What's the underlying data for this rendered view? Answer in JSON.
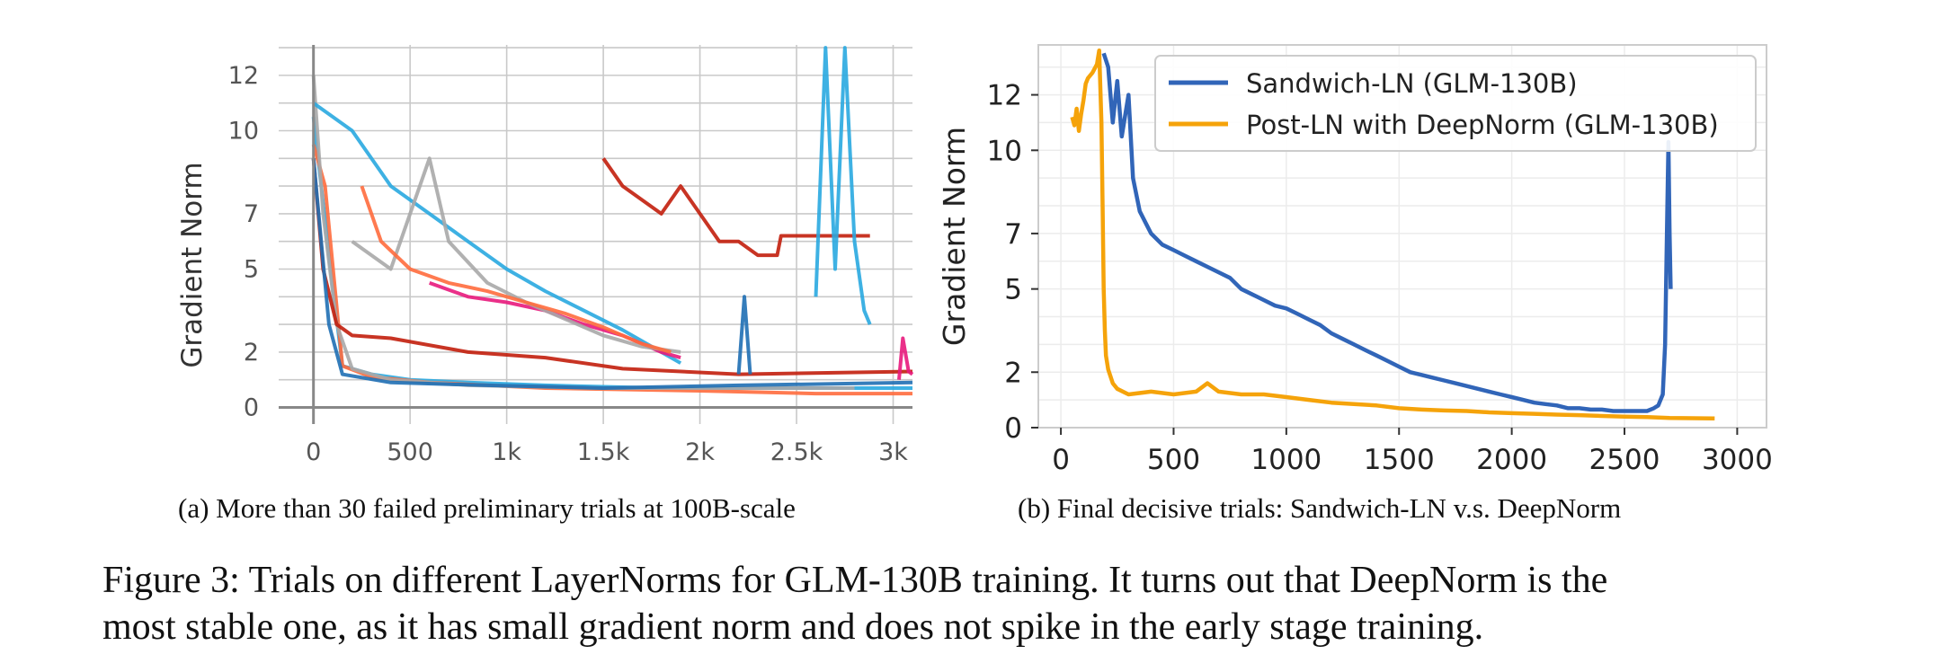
{
  "chart_data": [
    {
      "type": "line",
      "panel": "a",
      "ylabel": "Gradient Norm",
      "xlabel": "",
      "xlim": [
        -180,
        3100
      ],
      "ylim": [
        -0.6,
        13.1
      ],
      "x_ticks": [
        0,
        500,
        1000,
        1500,
        2000,
        2500,
        3000
      ],
      "x_tick_labels": [
        "0",
        "500",
        "1k",
        "1.5k",
        "2k",
        "2.5k",
        "3k"
      ],
      "y_ticks": [
        0,
        2,
        5,
        7,
        10,
        12
      ],
      "y_tick_labels": [
        "0",
        "2",
        "5",
        "7",
        "10",
        "12"
      ],
      "y_minor_gridlines": [
        1,
        3,
        4,
        6,
        8,
        9,
        11,
        13
      ],
      "grid": true,
      "legend": "none",
      "series": [
        {
          "color": "#29a8e0",
          "points": [
            [
              0,
              10.5
            ],
            [
              80,
              5.5
            ],
            [
              150,
              1.5
            ],
            [
              300,
              1.2
            ],
            [
              500,
              1.0
            ],
            [
              800,
              0.9
            ],
            [
              1200,
              0.8
            ],
            [
              1800,
              0.7
            ],
            [
              2400,
              0.7
            ],
            [
              3100,
              0.7
            ]
          ]
        },
        {
          "color": "#ff6b3d",
          "points": [
            [
              0,
              9.5
            ],
            [
              60,
              8
            ],
            [
              150,
              1.5
            ],
            [
              300,
              1.1
            ],
            [
              600,
              0.9
            ],
            [
              1200,
              0.7
            ],
            [
              2000,
              0.6
            ],
            [
              2600,
              0.5
            ],
            [
              3100,
              0.5
            ]
          ]
        },
        {
          "color": "#a8a8a8",
          "points": [
            [
              0,
              12
            ],
            [
              50,
              7
            ],
            [
              120,
              3
            ],
            [
              200,
              1.4
            ],
            [
              400,
              1.0
            ],
            [
              800,
              0.8
            ],
            [
              1500,
              0.7
            ],
            [
              2200,
              0.7
            ],
            [
              2800,
              0.7
            ]
          ]
        },
        {
          "color": "#c21e0c",
          "points": [
            [
              0,
              9
            ],
            [
              50,
              5
            ],
            [
              120,
              3
            ],
            [
              200,
              2.6
            ],
            [
              400,
              2.5
            ],
            [
              800,
              2.0
            ],
            [
              1200,
              1.8
            ],
            [
              1600,
              1.4
            ],
            [
              2200,
              1.2
            ],
            [
              3100,
              1.3
            ]
          ]
        },
        {
          "color": "#1f6fb4",
          "points": [
            [
              0,
              9
            ],
            [
              80,
              3
            ],
            [
              150,
              1.2
            ],
            [
              400,
              0.9
            ],
            [
              900,
              0.8
            ],
            [
              1500,
              0.7
            ],
            [
              2200,
              0.8
            ],
            [
              3100,
              0.9
            ]
          ]
        },
        {
          "color": "#29a8e0",
          "points": [
            [
              0,
              11
            ],
            [
              200,
              10
            ],
            [
              400,
              8
            ],
            [
              600,
              7
            ],
            [
              800,
              6
            ],
            [
              1000,
              5
            ],
            [
              1200,
              4.2
            ],
            [
              1400,
              3.5
            ],
            [
              1600,
              2.8
            ],
            [
              1800,
              2.0
            ],
            [
              1900,
              1.6
            ]
          ]
        },
        {
          "color": "#e8197c",
          "points": [
            [
              600,
              4.5
            ],
            [
              800,
              4.0
            ],
            [
              1000,
              3.8
            ],
            [
              1200,
              3.5
            ],
            [
              1400,
              3.0
            ],
            [
              1600,
              2.6
            ],
            [
              1800,
              2.0
            ],
            [
              1900,
              1.8
            ]
          ]
        },
        {
          "color": "#a8a8a8",
          "points": [
            [
              200,
              6
            ],
            [
              400,
              5
            ],
            [
              600,
              9
            ],
            [
              700,
              6
            ],
            [
              900,
              4.5
            ],
            [
              1100,
              3.8
            ],
            [
              1300,
              3.2
            ],
            [
              1500,
              2.6
            ],
            [
              1700,
              2.2
            ],
            [
              1900,
              2.0
            ]
          ]
        },
        {
          "color": "#ff6b3d",
          "points": [
            [
              250,
              8
            ],
            [
              350,
              6
            ],
            [
              500,
              5
            ],
            [
              700,
              4.5
            ],
            [
              900,
              4.2
            ],
            [
              1100,
              3.8
            ],
            [
              1300,
              3.4
            ],
            [
              1500,
              2.9
            ],
            [
              1700,
              2.3
            ],
            [
              1850,
              2.0
            ]
          ]
        },
        {
          "color": "#c21e0c",
          "points": [
            [
              1500,
              9
            ],
            [
              1600,
              8
            ],
            [
              1700,
              7.5
            ],
            [
              1800,
              7
            ],
            [
              1900,
              8
            ],
            [
              2000,
              7
            ],
            [
              2100,
              6
            ],
            [
              2200,
              6
            ],
            [
              2300,
              5.5
            ],
            [
              2400,
              5.5
            ],
            [
              2420,
              6.2
            ],
            [
              2880,
              6.2
            ]
          ]
        },
        {
          "color": "#29a8e0",
          "points": [
            [
              2600,
              4
            ],
            [
              2650,
              13
            ],
            [
              2700,
              5
            ],
            [
              2750,
              13
            ],
            [
              2800,
              6
            ],
            [
              2850,
              3.5
            ],
            [
              2880,
              3
            ]
          ]
        },
        {
          "color": "#1f6fb4",
          "points": [
            [
              2200,
              1.2
            ],
            [
              2230,
              4
            ],
            [
              2260,
              1.2
            ]
          ]
        },
        {
          "color": "#e8197c",
          "points": [
            [
              3030,
              1.0
            ],
            [
              3050,
              2.5
            ],
            [
              3080,
              1.3
            ],
            [
              3100,
              1.2
            ]
          ]
        }
      ]
    },
    {
      "type": "line",
      "panel": "b",
      "ylabel": "Gradient Norm",
      "xlabel": "",
      "xlim": [
        -100,
        3130
      ],
      "ylim": [
        0,
        13.8
      ],
      "x_ticks": [
        0,
        500,
        1000,
        1500,
        2000,
        2500,
        3000
      ],
      "y_ticks": [
        0,
        2,
        5,
        7,
        10,
        12
      ],
      "grid": true,
      "legend": "top-right",
      "series": [
        {
          "name": "Sandwich-LN (GLM-130B)",
          "color": "#3165b8",
          "points": [
            [
              190,
              13.5
            ],
            [
              210,
              13.0
            ],
            [
              230,
              11.0
            ],
            [
              250,
              12.5
            ],
            [
              270,
              10.5
            ],
            [
              300,
              12.0
            ],
            [
              320,
              9.0
            ],
            [
              350,
              7.8
            ],
            [
              400,
              7.0
            ],
            [
              450,
              6.6
            ],
            [
              500,
              6.4
            ],
            [
              550,
              6.2
            ],
            [
              600,
              6.0
            ],
            [
              650,
              5.8
            ],
            [
              700,
              5.6
            ],
            [
              750,
              5.4
            ],
            [
              800,
              5.0
            ],
            [
              850,
              4.8
            ],
            [
              900,
              4.6
            ],
            [
              950,
              4.4
            ],
            [
              1000,
              4.3
            ],
            [
              1050,
              4.1
            ],
            [
              1100,
              3.9
            ],
            [
              1150,
              3.7
            ],
            [
              1200,
              3.4
            ],
            [
              1250,
              3.2
            ],
            [
              1300,
              3.0
            ],
            [
              1350,
              2.8
            ],
            [
              1400,
              2.6
            ],
            [
              1450,
              2.4
            ],
            [
              1500,
              2.2
            ],
            [
              1550,
              2.0
            ],
            [
              1600,
              1.9
            ],
            [
              1650,
              1.8
            ],
            [
              1700,
              1.7
            ],
            [
              1750,
              1.6
            ],
            [
              1800,
              1.5
            ],
            [
              1850,
              1.4
            ],
            [
              1900,
              1.3
            ],
            [
              1950,
              1.2
            ],
            [
              2000,
              1.1
            ],
            [
              2050,
              1.0
            ],
            [
              2100,
              0.9
            ],
            [
              2150,
              0.85
            ],
            [
              2200,
              0.8
            ],
            [
              2250,
              0.7
            ],
            [
              2300,
              0.7
            ],
            [
              2350,
              0.65
            ],
            [
              2400,
              0.65
            ],
            [
              2450,
              0.6
            ],
            [
              2500,
              0.6
            ],
            [
              2550,
              0.6
            ],
            [
              2600,
              0.6
            ],
            [
              2630,
              0.7
            ],
            [
              2650,
              0.8
            ],
            [
              2670,
              1.2
            ],
            [
              2680,
              3.0
            ],
            [
              2690,
              8.0
            ],
            [
              2695,
              10.3
            ],
            [
              2700,
              7.0
            ],
            [
              2705,
              5.0
            ]
          ]
        },
        {
          "name": "Post-LN with DeepNorm (GLM-130B)",
          "color": "#f5a30a",
          "points": [
            [
              50,
              11.2
            ],
            [
              60,
              10.9
            ],
            [
              70,
              11.5
            ],
            [
              80,
              10.7
            ],
            [
              90,
              11.3
            ],
            [
              100,
              11.8
            ],
            [
              110,
              12.4
            ],
            [
              120,
              12.6
            ],
            [
              140,
              12.8
            ],
            [
              160,
              13.1
            ],
            [
              170,
              13.6
            ],
            [
              180,
              11.0
            ],
            [
              185,
              8.0
            ],
            [
              190,
              5.0
            ],
            [
              195,
              3.5
            ],
            [
              200,
              2.6
            ],
            [
              210,
              2.1
            ],
            [
              230,
              1.6
            ],
            [
              250,
              1.4
            ],
            [
              300,
              1.2
            ],
            [
              400,
              1.3
            ],
            [
              500,
              1.2
            ],
            [
              600,
              1.3
            ],
            [
              650,
              1.6
            ],
            [
              700,
              1.3
            ],
            [
              800,
              1.2
            ],
            [
              900,
              1.2
            ],
            [
              1000,
              1.1
            ],
            [
              1100,
              1.0
            ],
            [
              1200,
              0.9
            ],
            [
              1300,
              0.85
            ],
            [
              1400,
              0.8
            ],
            [
              1500,
              0.7
            ],
            [
              1600,
              0.65
            ],
            [
              1700,
              0.62
            ],
            [
              1800,
              0.6
            ],
            [
              1900,
              0.55
            ],
            [
              2000,
              0.52
            ],
            [
              2100,
              0.5
            ],
            [
              2200,
              0.47
            ],
            [
              2300,
              0.45
            ],
            [
              2400,
              0.42
            ],
            [
              2500,
              0.4
            ],
            [
              2600,
              0.38
            ],
            [
              2700,
              0.35
            ],
            [
              2800,
              0.34
            ],
            [
              2900,
              0.33
            ]
          ]
        }
      ]
    }
  ],
  "captions": {
    "sub_a": "(a) More than 30 failed preliminary trials at 100B-scale",
    "sub_b": "(b) Final decisive trials: Sandwich-LN v.s. DeepNorm",
    "main_line1": "Figure 3: Trials on different LayerNorms for GLM-130B training. It turns out that DeepNorm is the",
    "main_line2": "most stable one, as it has small gradient norm and does not spike in the early stage training."
  }
}
